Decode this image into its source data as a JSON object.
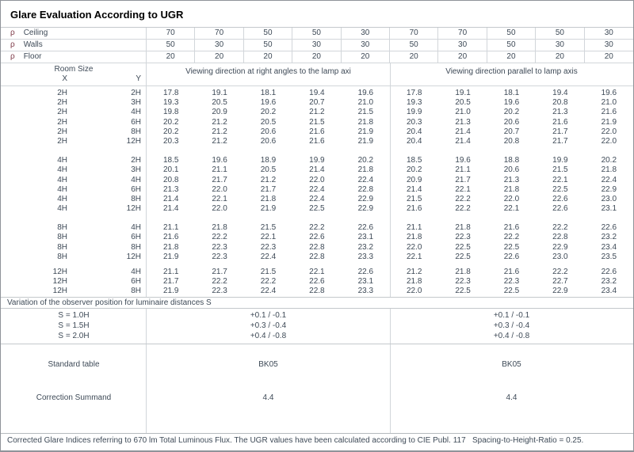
{
  "title": "Glare Evaluation According to UGR",
  "header": {
    "rho_symbol": "ρ",
    "rho_rows": [
      {
        "label": "Ceiling",
        "values": [
          "70",
          "70",
          "50",
          "50",
          "30",
          "70",
          "70",
          "50",
          "50",
          "30"
        ]
      },
      {
        "label": "Walls",
        "values": [
          "50",
          "30",
          "50",
          "30",
          "30",
          "50",
          "30",
          "50",
          "30",
          "30"
        ]
      },
      {
        "label": "Floor",
        "values": [
          "20",
          "20",
          "20",
          "20",
          "20",
          "20",
          "20",
          "20",
          "20",
          "20"
        ]
      }
    ],
    "room_size_label": "Room Size",
    "x_label": "X",
    "y_label": "Y",
    "group_left": "Viewing direction at right angles to the lamp axi",
    "group_right": "Viewing direction parallel to lamp axis"
  },
  "blocks": [
    {
      "rows": [
        {
          "x": "2H",
          "y": "2H",
          "values": [
            "17.8",
            "19.1",
            "18.1",
            "19.4",
            "19.6",
            "17.8",
            "19.1",
            "18.1",
            "19.4",
            "19.6"
          ]
        },
        {
          "x": "2H",
          "y": "3H",
          "values": [
            "19.3",
            "20.5",
            "19.6",
            "20.7",
            "21.0",
            "19.3",
            "20.5",
            "19.6",
            "20.8",
            "21.0"
          ]
        },
        {
          "x": "2H",
          "y": "4H",
          "values": [
            "19.8",
            "20.9",
            "20.2",
            "21.2",
            "21.5",
            "19.9",
            "21.0",
            "20.2",
            "21.3",
            "21.6"
          ]
        },
        {
          "x": "2H",
          "y": "6H",
          "values": [
            "20.2",
            "21.2",
            "20.5",
            "21.5",
            "21.8",
            "20.3",
            "21.3",
            "20.6",
            "21.6",
            "21.9"
          ]
        },
        {
          "x": "2H",
          "y": "8H",
          "values": [
            "20.2",
            "21.2",
            "20.6",
            "21.6",
            "21.9",
            "20.4",
            "21.4",
            "20.7",
            "21.7",
            "22.0"
          ]
        },
        {
          "x": "2H",
          "y": "12H",
          "values": [
            "20.3",
            "21.2",
            "20.6",
            "21.6",
            "21.9",
            "20.4",
            "21.4",
            "20.8",
            "21.7",
            "22.0"
          ]
        }
      ]
    },
    {
      "rows": [
        {
          "x": "4H",
          "y": "2H",
          "values": [
            "18.5",
            "19.6",
            "18.9",
            "19.9",
            "20.2",
            "18.5",
            "19.6",
            "18.8",
            "19.9",
            "20.2"
          ]
        },
        {
          "x": "4H",
          "y": "3H",
          "values": [
            "20.1",
            "21.1",
            "20.5",
            "21.4",
            "21.8",
            "20.2",
            "21.1",
            "20.6",
            "21.5",
            "21.8"
          ]
        },
        {
          "x": "4H",
          "y": "4H",
          "values": [
            "20.8",
            "21.7",
            "21.2",
            "22.0",
            "22.4",
            "20.9",
            "21.7",
            "21.3",
            "22.1",
            "22.4"
          ]
        },
        {
          "x": "4H",
          "y": "6H",
          "values": [
            "21.3",
            "22.0",
            "21.7",
            "22.4",
            "22.8",
            "21.4",
            "22.1",
            "21.8",
            "22.5",
            "22.9"
          ]
        },
        {
          "x": "4H",
          "y": "8H",
          "values": [
            "21.4",
            "22.1",
            "21.8",
            "22.4",
            "22.9",
            "21.5",
            "22.2",
            "22.0",
            "22.6",
            "23.0"
          ]
        },
        {
          "x": "4H",
          "y": "12H",
          "values": [
            "21.4",
            "22.0",
            "21.9",
            "22.5",
            "22.9",
            "21.6",
            "22.2",
            "22.1",
            "22.6",
            "23.1"
          ]
        }
      ]
    },
    {
      "rows": [
        {
          "x": "8H",
          "y": "4H",
          "values": [
            "21.1",
            "21.8",
            "21.5",
            "22.2",
            "22.6",
            "21.1",
            "21.8",
            "21.6",
            "22.2",
            "22.6"
          ]
        },
        {
          "x": "8H",
          "y": "6H",
          "values": [
            "21.6",
            "22.2",
            "22.1",
            "22.6",
            "23.1",
            "21.8",
            "22.3",
            "22.2",
            "22.8",
            "23.2"
          ]
        },
        {
          "x": "8H",
          "y": "8H",
          "values": [
            "21.8",
            "22.3",
            "22.3",
            "22.8",
            "23.2",
            "22.0",
            "22.5",
            "22.5",
            "22.9",
            "23.4"
          ]
        },
        {
          "x": "8H",
          "y": "12H",
          "values": [
            "21.9",
            "22.3",
            "22.4",
            "22.8",
            "23.3",
            "22.1",
            "22.5",
            "22.6",
            "23.0",
            "23.5"
          ]
        }
      ]
    },
    {
      "rows": [
        {
          "x": "12H",
          "y": "4H",
          "values": [
            "21.1",
            "21.7",
            "21.5",
            "22.1",
            "22.6",
            "21.2",
            "21.8",
            "21.6",
            "22.2",
            "22.6"
          ]
        },
        {
          "x": "12H",
          "y": "6H",
          "values": [
            "21.7",
            "22.2",
            "22.2",
            "22.6",
            "23.1",
            "21.8",
            "22.3",
            "22.3",
            "22.7",
            "23.2"
          ]
        },
        {
          "x": "12H",
          "y": "8H",
          "values": [
            "21.9",
            "22.3",
            "22.4",
            "22.8",
            "23.3",
            "22.0",
            "22.5",
            "22.5",
            "22.9",
            "23.4"
          ]
        }
      ]
    }
  ],
  "variation": {
    "title": "Variation of the observer position for luminaire distances S",
    "rows": [
      {
        "label": "S = 1.0H",
        "left": "+0.1 / -0.1",
        "right": "+0.1 / -0.1"
      },
      {
        "label": "S = 1.5H",
        "left": "+0.3 / -0.4",
        "right": "+0.3 / -0.4"
      },
      {
        "label": "S = 2.0H",
        "left": "+0.4 / -0.8",
        "right": "+0.4 / -0.8"
      }
    ]
  },
  "summary": {
    "standard_table_label": "Standard table",
    "standard_table_left": "BK05",
    "standard_table_right": "BK05",
    "correction_label": "Correction Summand",
    "correction_left": "4.4",
    "correction_right": "4.4"
  },
  "footer": "Corrected Glare Indices referring to 670 lm Total Luminous Flux. The UGR values have been calculated according to CIE Publ. 117   Spacing-to-Height-Ratio = 0.25.",
  "colors": {
    "text": "#3e4a57",
    "rho_symbol": "#7e3a48",
    "grid_border": "#d2d6da",
    "outer_border": "#8f9399"
  }
}
